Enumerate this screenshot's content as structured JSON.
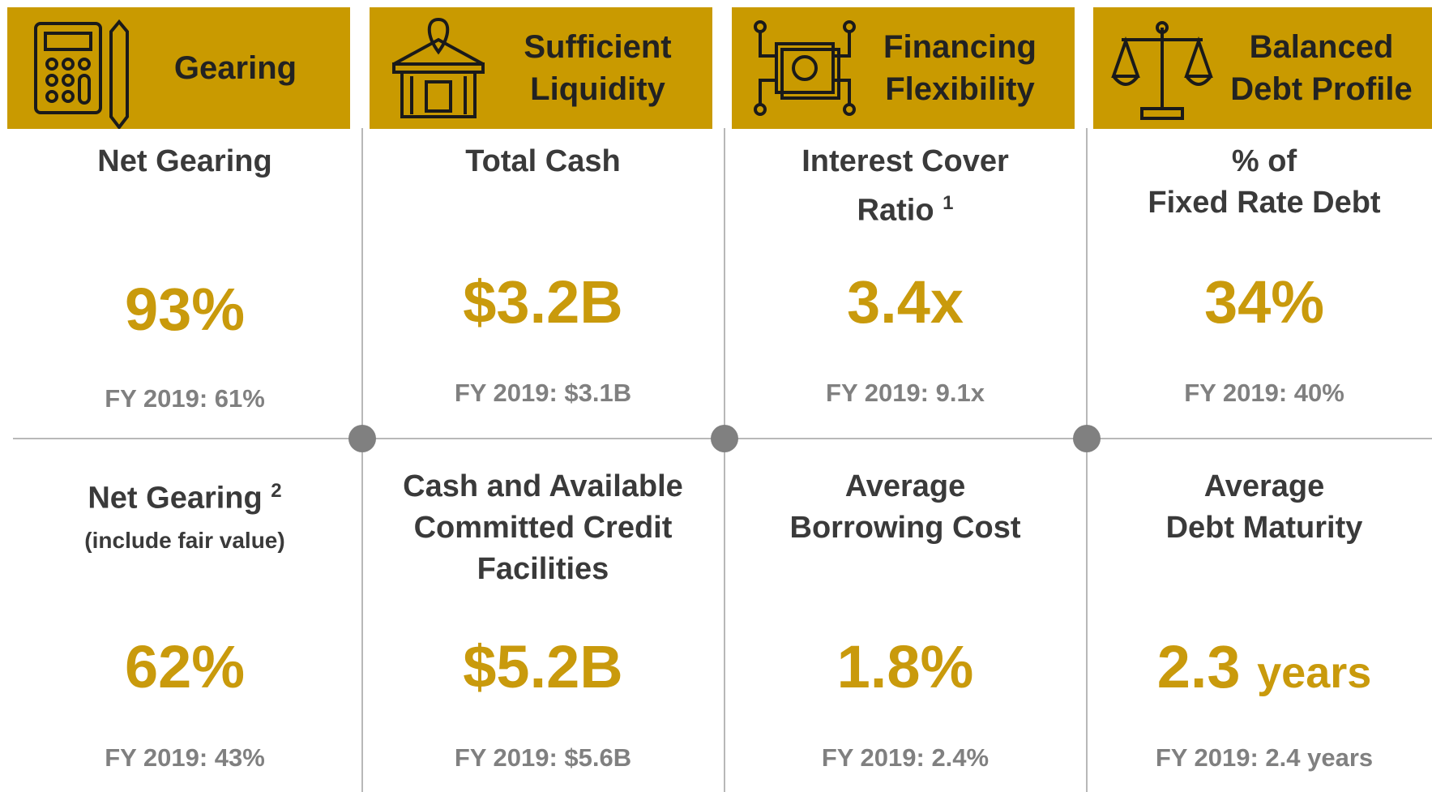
{
  "columns": [
    {
      "header": [
        "Gearing"
      ],
      "top": {
        "label": [
          "Net Gearing"
        ],
        "value": "93%",
        "prior": "FY 2019: 61%"
      },
      "bottom": {
        "label": [
          "Net Gearing"
        ],
        "sup": "2",
        "note": "(include fair value)",
        "value": "62%",
        "prior": "FY 2019: 43%"
      }
    },
    {
      "header": [
        "Sufficient",
        "Liquidity"
      ],
      "top": {
        "label": [
          "Total Cash"
        ],
        "value": "$3.2B",
        "prior": "FY 2019: $3.1B"
      },
      "bottom": {
        "label": [
          "Cash and Available",
          "Committed Credit",
          "Facilities"
        ],
        "value": "$5.2B",
        "prior": "FY 2019: $5.6B"
      }
    },
    {
      "header": [
        "Financing",
        "Flexibility"
      ],
      "top": {
        "label": [
          "Interest Cover",
          "Ratio"
        ],
        "sup": "1",
        "value": "3.4x",
        "prior": "FY 2019: 9.1x"
      },
      "bottom": {
        "label": [
          "Average",
          "Borrowing Cost"
        ],
        "value": "1.8%",
        "prior": "FY 2019: 2.4%"
      }
    },
    {
      "header": [
        "Balanced",
        "Debt Profile"
      ],
      "top": {
        "label": [
          "% of",
          "Fixed Rate Debt"
        ],
        "value": "34%",
        "prior": "FY 2019: 40%"
      },
      "bottom": {
        "label": [
          "Average",
          "Debt Maturity"
        ],
        "value": "2.3",
        "unit": "years",
        "prior": "FY 2019: 2.4 years"
      }
    }
  ]
}
